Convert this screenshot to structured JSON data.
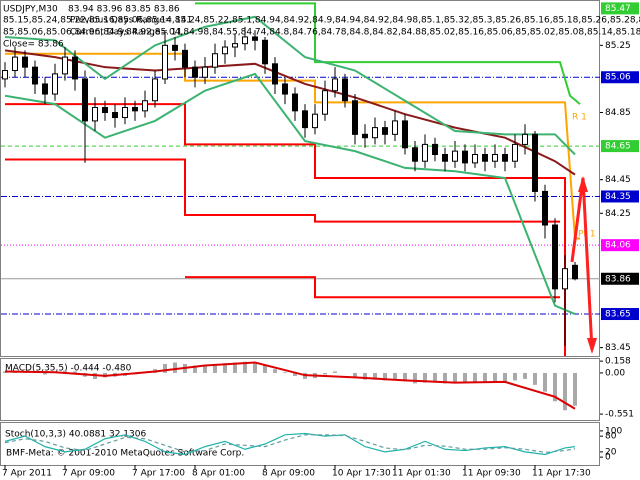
{
  "chart_data": [
    {
      "type": "candlestick",
      "title": "USDJPY,M30",
      "ohlc": "83.94 83.96 83.85 83.86",
      "high": [
        85.15,
        85.24,
        85.22,
        85.16,
        85.06,
        85.14,
        85.24,
        85.22,
        85.1,
        84.94,
        84.92,
        84.9,
        84.94,
        84.92,
        84.98,
        85.1,
        85.32,
        85.3,
        85.26,
        85.16,
        85.18,
        85.26,
        85.28,
        85.32,
        85.36,
        85.34,
        85.3,
        85.18,
        85.06,
        85.0,
        84.9,
        84.9,
        85.04,
        85.12,
        85.08,
        84.96,
        84.78,
        84.82,
        84.8,
        84.86,
        84.84,
        84.68,
        84.72,
        84.7,
        84.64,
        84.68,
        84.66,
        84.66,
        84.64,
        84.66,
        84.64,
        84.72,
        84.78,
        84.74,
        84.42,
        84.22,
        84.0,
        83.96
      ],
      "prev_range": "Previous Days Range= 141",
      "low": [
        85.0,
        85.06,
        85.06,
        84.96,
        84.9,
        84.92,
        85.04,
        84.98,
        84.55,
        84.74,
        84.8,
        84.76,
        84.78,
        84.8,
        84.82,
        84.88,
        85.02,
        85.16,
        85.06,
        85.0,
        85.02,
        85.08,
        85.14,
        85.18,
        85.22,
        85.22,
        85.08,
        84.96,
        84.9,
        84.8,
        84.7,
        84.72,
        84.8,
        84.94,
        84.88,
        84.66,
        84.64,
        84.66,
        84.66,
        84.68,
        84.6,
        84.5,
        84.52,
        84.56,
        84.5,
        84.52,
        84.5,
        84.52,
        84.5,
        84.52,
        84.5,
        84.52,
        84.6,
        84.32,
        84.1,
        83.72,
        83.46,
        83.85
      ],
      "cur_range": "Current Days Range= 11",
      "close_text": "Close= 83.86",
      "annotations": [
        "R 1",
        "Pt 1"
      ],
      "up_color": "#ffffff",
      "down_color": "#000000",
      "open": [
        85.05,
        85.1,
        85.18,
        85.12,
        85.02,
        84.96,
        85.08,
        85.18,
        85.05,
        84.8,
        84.88,
        84.85,
        84.82,
        84.88,
        84.86,
        84.92,
        85.05,
        85.25,
        85.22,
        85.12,
        85.06,
        85.12,
        85.2,
        85.24,
        85.26,
        85.3,
        85.28,
        85.14,
        85.02,
        84.96,
        84.86,
        84.76,
        84.84,
        84.98,
        85.05,
        84.92,
        84.72,
        84.7,
        84.76,
        84.72,
        84.8,
        84.64,
        84.56,
        84.66,
        84.6,
        84.56,
        84.62,
        84.55,
        84.6,
        84.56,
        84.6,
        84.56,
        84.66,
        84.72,
        84.38,
        84.18,
        83.8,
        83.94
      ],
      "close": [
        85.1,
        85.18,
        85.12,
        85.02,
        84.96,
        85.08,
        85.18,
        85.05,
        84.8,
        84.88,
        84.85,
        84.82,
        84.88,
        84.86,
        84.92,
        85.05,
        85.25,
        85.22,
        85.12,
        85.06,
        85.12,
        85.2,
        85.24,
        85.26,
        85.3,
        85.28,
        85.14,
        85.02,
        84.96,
        84.86,
        84.76,
        84.84,
        84.98,
        85.05,
        84.92,
        84.72,
        84.7,
        84.76,
        84.72,
        84.8,
        84.64,
        84.56,
        84.66,
        84.6,
        84.56,
        84.62,
        84.55,
        84.6,
        84.56,
        84.6,
        84.56,
        84.66,
        84.72,
        84.38,
        84.18,
        83.8,
        83.92,
        83.86
      ],
      "overlays": [
        {
          "color": "#8b1a1a",
          "x": [
            0,
            5,
            10,
            15,
            20,
            25,
            30,
            35,
            40,
            45,
            50,
            55,
            57
          ],
          "values": [
            85.22,
            85.18,
            85.12,
            85.1,
            85.12,
            85.14,
            85.02,
            84.94,
            84.84,
            84.76,
            84.7,
            84.56,
            84.48
          ]
        },
        {
          "color": "#3cb371",
          "x": [
            0,
            5,
            10,
            15,
            20,
            25,
            30,
            35,
            40,
            45,
            50,
            55,
            57
          ],
          "values": [
            85.3,
            85.28,
            85.05,
            85.25,
            85.36,
            85.42,
            85.18,
            85.1,
            84.92,
            84.74,
            84.72,
            84.72,
            84.6
          ]
        },
        {
          "color": "#3cb371",
          "x": [
            0,
            5,
            10,
            15,
            20,
            25,
            30,
            35,
            40,
            45,
            50,
            55,
            57
          ],
          "values": [
            84.95,
            84.9,
            84.7,
            84.8,
            84.98,
            85.08,
            84.68,
            84.62,
            84.52,
            84.5,
            84.46,
            83.7,
            83.65
          ]
        }
      ],
      "step_lines": [
        {
          "color": "#ff0000",
          "points": [
            [
              0,
              84.9
            ],
            [
              18,
              84.9
            ],
            [
              18,
              84.66
            ],
            [
              31,
              84.66
            ],
            [
              31,
              84.46
            ],
            [
              56,
              84.46
            ],
            [
              56,
              83.4
            ]
          ]
        },
        {
          "color": "#ff0000",
          "points": [
            [
              0,
              84.57
            ],
            [
              18,
              84.57
            ],
            [
              18,
              84.24
            ],
            [
              31,
              84.24
            ],
            [
              31,
              84.2
            ],
            [
              55.5,
              84.2
            ]
          ]
        },
        {
          "color": "#ff0000",
          "points": [
            [
              18,
              83.87
            ],
            [
              31,
              83.87
            ],
            [
              31,
              83.75
            ],
            [
              55.5,
              83.75
            ]
          ]
        },
        {
          "color": "#ffa500",
          "points": [
            [
              0,
              85.2
            ],
            [
              18,
              85.2
            ],
            [
              18,
              85.04
            ],
            [
              31,
              85.04
            ],
            [
              31,
              84.91
            ],
            [
              56,
              84.91
            ],
            [
              57,
              84.1
            ],
            [
              57.5,
              84.1
            ]
          ]
        },
        {
          "color": "#32cd32",
          "points": [
            [
              19,
              85.5
            ],
            [
              31,
              85.5
            ],
            [
              31,
              85.15
            ],
            [
              55.5,
              85.15
            ],
            [
              56.5,
              84.95
            ],
            [
              57.5,
              84.9
            ]
          ]
        }
      ],
      "levels": [
        {
          "value": 85.47,
          "color": "#32cd32",
          "line": "none"
        },
        {
          "value": 85.06,
          "color": "#0000cd",
          "line": "dashdot"
        },
        {
          "value": 84.65,
          "color": "#32cd32",
          "line": "dash"
        },
        {
          "value": 84.35,
          "color": "#0000cd",
          "line": "dashdot"
        },
        {
          "value": 84.06,
          "color": "#ff00ff",
          "line": "dot"
        },
        {
          "value": 83.86,
          "color": "#000000",
          "line": "solid"
        },
        {
          "value": 83.65,
          "color": "#0000cd",
          "line": "dashdot"
        }
      ],
      "ylim": [
        83.4,
        85.52
      ],
      "yticks": [
        85.25,
        84.85,
        84.45,
        84.25,
        83.45
      ],
      "xticks": [
        {
          "value": 0,
          "label": "7 Apr 2011"
        },
        {
          "value": 6,
          "label": "7 Apr 09:00"
        },
        {
          "value": 13,
          "label": "7 Apr 17:00"
        },
        {
          "value": 19,
          "label": "8 Apr 01:00"
        },
        {
          "value": 26,
          "label": "8 Apr 09:00"
        },
        {
          "value": 33,
          "label": "10 Apr 17:30"
        },
        {
          "value": 39,
          "label": "11 Apr 01:30"
        },
        {
          "value": 46,
          "label": "11 Apr 09:30"
        },
        {
          "value": 53,
          "label": "11 Apr 17:30"
        }
      ]
    },
    {
      "type": "bar",
      "title": "MACD(5,35,5) -0.444 -0.480",
      "color": "#a9a9a9",
      "values": [
        0.02,
        0.03,
        0.02,
        0.0,
        -0.02,
        0.0,
        0.03,
        0.02,
        -0.05,
        -0.08,
        -0.06,
        -0.05,
        -0.04,
        -0.02,
        0.0,
        0.05,
        0.12,
        0.14,
        0.12,
        0.1,
        0.1,
        0.12,
        0.13,
        0.14,
        0.15,
        0.14,
        0.1,
        0.05,
        0.01,
        -0.04,
        -0.08,
        -0.07,
        -0.02,
        0.02,
        0.0,
        -0.06,
        -0.09,
        -0.09,
        -0.1,
        -0.08,
        -0.11,
        -0.14,
        -0.13,
        -0.13,
        -0.14,
        -0.13,
        -0.14,
        -0.13,
        -0.13,
        -0.12,
        -0.12,
        -0.1,
        -0.08,
        -0.16,
        -0.25,
        -0.38,
        -0.5,
        -0.44
      ],
      "signal": {
        "color": "#dd0000",
        "x": [
          0,
          5,
          10,
          15,
          20,
          25,
          30,
          35,
          40,
          45,
          50,
          55,
          57
        ],
        "values": [
          0.02,
          0.01,
          -0.04,
          0.02,
          0.1,
          0.14,
          -0.03,
          -0.06,
          -0.1,
          -0.13,
          -0.12,
          -0.32,
          -0.48
        ]
      },
      "ylim": [
        -0.63,
        0.2
      ],
      "yticks": [
        0.158,
        {
          "value": 0,
          "label": "0.00"
        },
        -0.551
      ]
    },
    {
      "type": "line",
      "title": "Stoch(10,3,3) 40.0881 32.1306",
      "copyright": "BMF-Meta: © 2001-2010 MetaQuotes Software Corp.",
      "x": [
        0,
        2,
        4,
        6,
        8,
        10,
        12,
        14,
        16,
        18,
        20,
        22,
        24,
        26,
        28,
        30,
        32,
        34,
        36,
        38,
        40,
        42,
        44,
        46,
        48,
        50,
        52,
        54,
        56,
        57
      ],
      "series": [
        {
          "color": "#20b2aa",
          "style": "solid",
          "values": [
            60,
            80,
            40,
            20,
            30,
            70,
            85,
            60,
            20,
            10,
            40,
            60,
            30,
            50,
            85,
            90,
            80,
            85,
            40,
            20,
            30,
            60,
            30,
            25,
            35,
            40,
            20,
            10,
            35,
            40
          ]
        },
        {
          "color": "#5f9ea0",
          "style": "dash",
          "values": [
            55,
            70,
            60,
            35,
            25,
            50,
            75,
            70,
            45,
            20,
            25,
            50,
            45,
            40,
            65,
            85,
            85,
            82,
            60,
            35,
            28,
            45,
            42,
            30,
            30,
            36,
            30,
            18,
            25,
            32
          ]
        }
      ],
      "ylim": [
        -30,
        130
      ],
      "yticks": [
        100,
        80,
        20,
        0
      ]
    }
  ]
}
